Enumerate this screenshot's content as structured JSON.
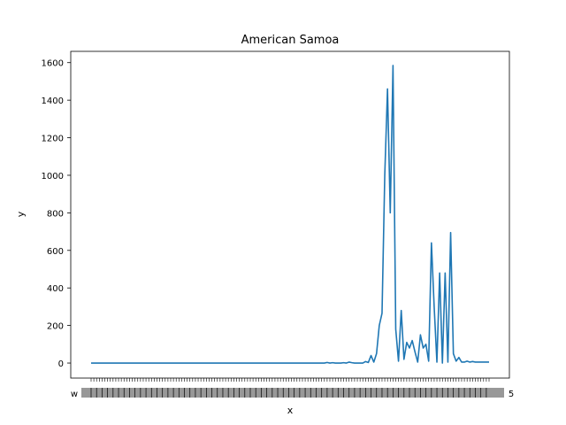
{
  "chart_data": {
    "type": "line",
    "title": "American Samoa",
    "xlabel": "x",
    "ylabel": "y",
    "ylim": [
      -80,
      1660
    ],
    "yticks": [
      0,
      200,
      400,
      600,
      800,
      1000,
      1200,
      1400,
      1600
    ],
    "grid": false,
    "legend": "none",
    "x_tick_label_first": "w",
    "x_tick_label_last": "5",
    "series": [
      {
        "color": "#1f77b4",
        "values": [
          0,
          0,
          0,
          0,
          0,
          0,
          0,
          0,
          0,
          0,
          0,
          0,
          0,
          0,
          0,
          0,
          0,
          0,
          0,
          0,
          0,
          0,
          0,
          0,
          0,
          0,
          0,
          0,
          0,
          0,
          0,
          0,
          0,
          0,
          0,
          0,
          0,
          0,
          0,
          0,
          0,
          0,
          0,
          0,
          0,
          0,
          0,
          0,
          0,
          0,
          0,
          0,
          0,
          0,
          0,
          0,
          0,
          0,
          0,
          0,
          0,
          0,
          0,
          0,
          0,
          0,
          0,
          0,
          0,
          0,
          0,
          0,
          0,
          0,
          0,
          0,
          0,
          0,
          0,
          0,
          0,
          0,
          0,
          0,
          0,
          0,
          3,
          0,
          2,
          0,
          0,
          0,
          2,
          0,
          5,
          2,
          0,
          0,
          0,
          0,
          8,
          3,
          40,
          5,
          50,
          200,
          265,
          1000,
          1460,
          800,
          1585,
          180,
          10,
          280,
          20,
          110,
          80,
          120,
          60,
          5,
          150,
          80,
          100,
          10,
          640,
          300,
          5,
          480,
          0,
          480,
          5,
          695,
          50,
          10,
          30,
          5,
          5,
          10,
          5,
          8,
          5,
          5,
          5,
          5,
          5,
          5
        ]
      }
    ]
  }
}
